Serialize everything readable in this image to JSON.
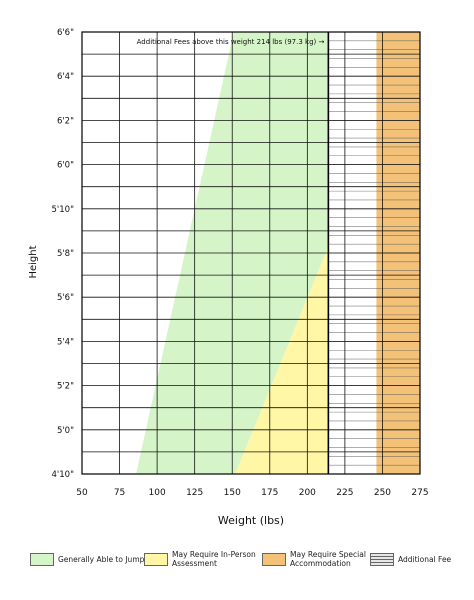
{
  "chart_data": {
    "type": "area",
    "xlabel": "Weight (lbs)",
    "ylabel": "Height",
    "x_ticks": [
      50,
      75,
      100,
      125,
      150,
      175,
      200,
      225,
      250,
      275
    ],
    "y_ticks": [
      {
        "inches": 58,
        "label": "4'10\""
      },
      {
        "inches": 60,
        "label": "5'0\""
      },
      {
        "inches": 62,
        "label": "5'2\""
      },
      {
        "inches": 64,
        "label": "5'4\""
      },
      {
        "inches": 66,
        "label": "5'6\""
      },
      {
        "inches": 68,
        "label": "5'8\""
      },
      {
        "inches": 70,
        "label": "5'10\""
      },
      {
        "inches": 72,
        "label": "6'0\""
      },
      {
        "inches": 74,
        "label": "6'2\""
      },
      {
        "inches": 76,
        "label": "6'4\""
      },
      {
        "inches": 78,
        "label": "6'6\""
      }
    ],
    "xlim": [
      50,
      275
    ],
    "ylim_inches": [
      58,
      78
    ],
    "grid": true,
    "annotation": "Additional Fees above this weight 214 lbs (97.3 kg) →",
    "threshold_weight_lbs": 214,
    "regions": [
      {
        "name": "Generally Able to Jump",
        "color": "#d5f5c8",
        "polygon_lbs_inches": [
          [
            86,
            58
          ],
          [
            152,
            58
          ],
          [
            214,
            68.3
          ],
          [
            214,
            78
          ],
          [
            151,
            78
          ]
        ]
      },
      {
        "name": "May Require In-Person Assessment",
        "color": "#fff6a6",
        "polygon_lbs_inches": [
          [
            152,
            58
          ],
          [
            214,
            58
          ],
          [
            214,
            68.3
          ]
        ]
      },
      {
        "name": "May Require Special Accommodation",
        "color": "#f3c278",
        "polygon_lbs_inches": [
          [
            246,
            58
          ],
          [
            275,
            58
          ],
          [
            275,
            78
          ],
          [
            246,
            78
          ]
        ]
      }
    ],
    "hatch": {
      "name": "Additional Fee",
      "from_lbs": 214,
      "to_lbs": 275,
      "line_spacing_inches": 0.4
    },
    "legend": [
      {
        "label": "Generally Able to Jump",
        "color": "#d5f5c8"
      },
      {
        "label": "May Require In-Person Assessment",
        "color": "#fff6a6"
      },
      {
        "label": "May Require Special Accommodation",
        "color": "#f3c278"
      },
      {
        "label": "Additional Fee",
        "color": "#b0b0b0"
      }
    ],
    "legend_position": "bottom"
  }
}
